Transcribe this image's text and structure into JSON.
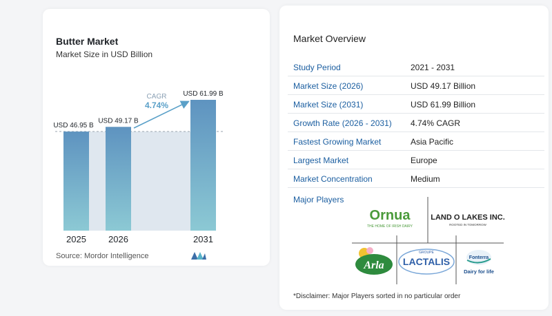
{
  "chart_card": {
    "title": "Butter Market",
    "subtitle": "Market Size in USD Billion",
    "source": "Source:  Mordor Intelligence"
  },
  "chart_data": {
    "type": "bar",
    "title": "Butter Market",
    "subtitle": "Market Size in USD Billion",
    "categories": [
      "2025",
      "2026",
      "2031"
    ],
    "values": [
      46.95,
      49.17,
      61.99
    ],
    "data_labels": [
      "USD 46.95 B",
      "USD 49.17 B",
      "USD 61.99 B"
    ],
    "annotation": {
      "label": "CAGR",
      "value": "4.74%"
    },
    "colors": {
      "bar_top": "#5e93c0",
      "bar_bottom": "#8cc9d4",
      "band": "#dfe7ef",
      "accent": "#5aa0c8"
    }
  },
  "overview": {
    "title": "Market Overview",
    "rows": [
      {
        "label": "Study Period",
        "value": "2021 - 2031"
      },
      {
        "label": "Market Size (2026)",
        "value": "USD 49.17 Billion"
      },
      {
        "label": "Market Size (2031)",
        "value": "USD 61.99 Billion"
      },
      {
        "label": "Growth Rate (2026 - 2031)",
        "value": "4.74% CAGR"
      },
      {
        "label": "Fastest Growing Market",
        "value": "Asia Pacific"
      },
      {
        "label": "Largest Market",
        "value": "Europe"
      },
      {
        "label": "Market Concentration",
        "value": "Medium"
      }
    ],
    "major_players_label": "Major Players",
    "players": [
      {
        "name": "Ornua",
        "tagline": "THE HOME OF IRISH DAIRY"
      },
      {
        "name": "LAND O LAKES INC.",
        "tagline": "ROOTED IN TOMORROW"
      },
      {
        "name": "Arla",
        "tagline": ""
      },
      {
        "name": "LACTALIS",
        "tagline": "GROUPE"
      },
      {
        "name": "Fonterra",
        "tagline": "Dairy for life"
      }
    ],
    "disclaimer": "*Disclaimer: Major Players sorted in no particular order"
  }
}
